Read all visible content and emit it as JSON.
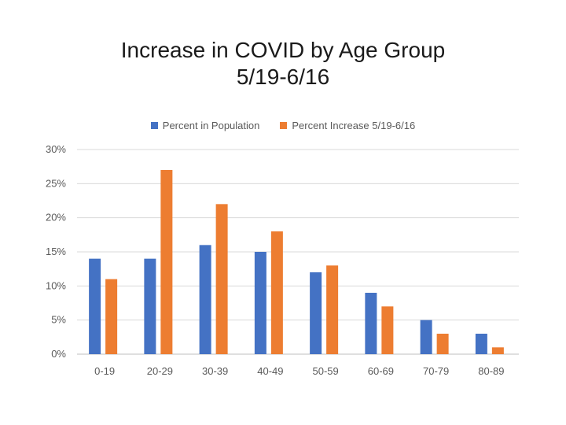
{
  "chart_data": {
    "type": "bar",
    "title": "Increase in COVID by Age Group",
    "subtitle": "5/19-6/16",
    "xlabel": "",
    "ylabel": "",
    "categories": [
      "0-19",
      "20-29",
      "30-39",
      "40-49",
      "50-59",
      "60-69",
      "70-79",
      "80-89"
    ],
    "series": [
      {
        "name": "Percent in Population",
        "values": [
          14,
          14,
          16,
          15,
          12,
          9,
          5,
          3
        ],
        "color": "#4472C4"
      },
      {
        "name": "Percent Increase 5/19-6/16",
        "values": [
          11,
          27,
          22,
          18,
          13,
          7,
          3,
          1
        ],
        "color": "#ED7D31"
      }
    ],
    "ylim": [
      0,
      30
    ],
    "yticks": [
      "0%",
      "5%",
      "10%",
      "15%",
      "20%",
      "25%",
      "30%"
    ],
    "ytick_values": [
      0,
      5,
      10,
      15,
      20,
      25,
      30
    ],
    "grid": true,
    "legend_position": "top"
  }
}
